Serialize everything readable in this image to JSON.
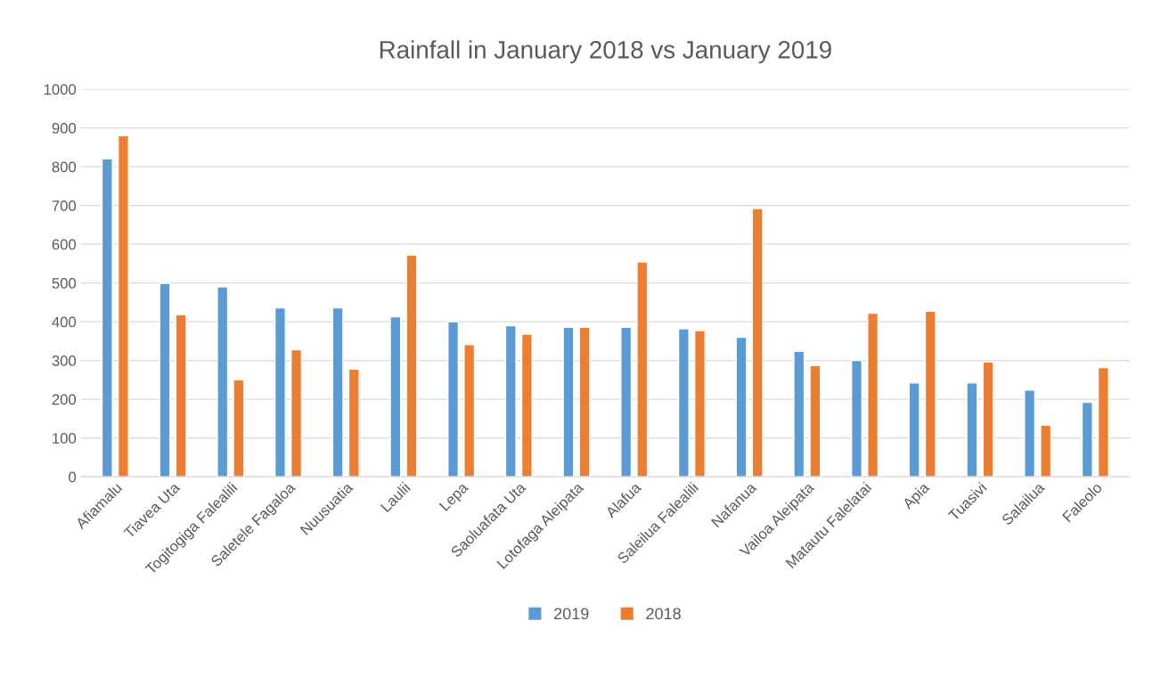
{
  "chart_data": {
    "type": "bar",
    "title": "Rainfall in January 2018 vs January 2019",
    "categories": [
      "Afiamalu",
      "Tiavea Uta",
      "Togitogiga Falealili",
      "Saletele Fagaloa",
      "Nuusuatia",
      "Laulii",
      "Lepa",
      "Saoluafata Uta",
      "Lotofaga Aleipata",
      "Alafua",
      "Saleilua Falealili",
      "Nafanua",
      "Vailoa Aleipata",
      "Matautu Falelatai",
      "Apia",
      "Tuasivi",
      "Salailua",
      "Faleolo"
    ],
    "series": [
      {
        "name": "2019",
        "color": "#5b9bd5",
        "values": [
          820,
          499,
          490,
          436,
          436,
          413,
          400,
          390,
          386,
          386,
          382,
          360,
          324,
          300,
          242,
          242,
          224,
          192
        ]
      },
      {
        "name": "2018",
        "color": "#ed7d31",
        "values": [
          880,
          418,
          250,
          328,
          278,
          572,
          341,
          368,
          386,
          554,
          377,
          692,
          287,
          422,
          427,
          296,
          133,
          282
        ]
      }
    ],
    "ylim": [
      0,
      1000
    ],
    "yticks": [
      0,
      100,
      200,
      300,
      400,
      500,
      600,
      700,
      800,
      900,
      1000
    ],
    "grid": "y",
    "legend": "bottom"
  }
}
